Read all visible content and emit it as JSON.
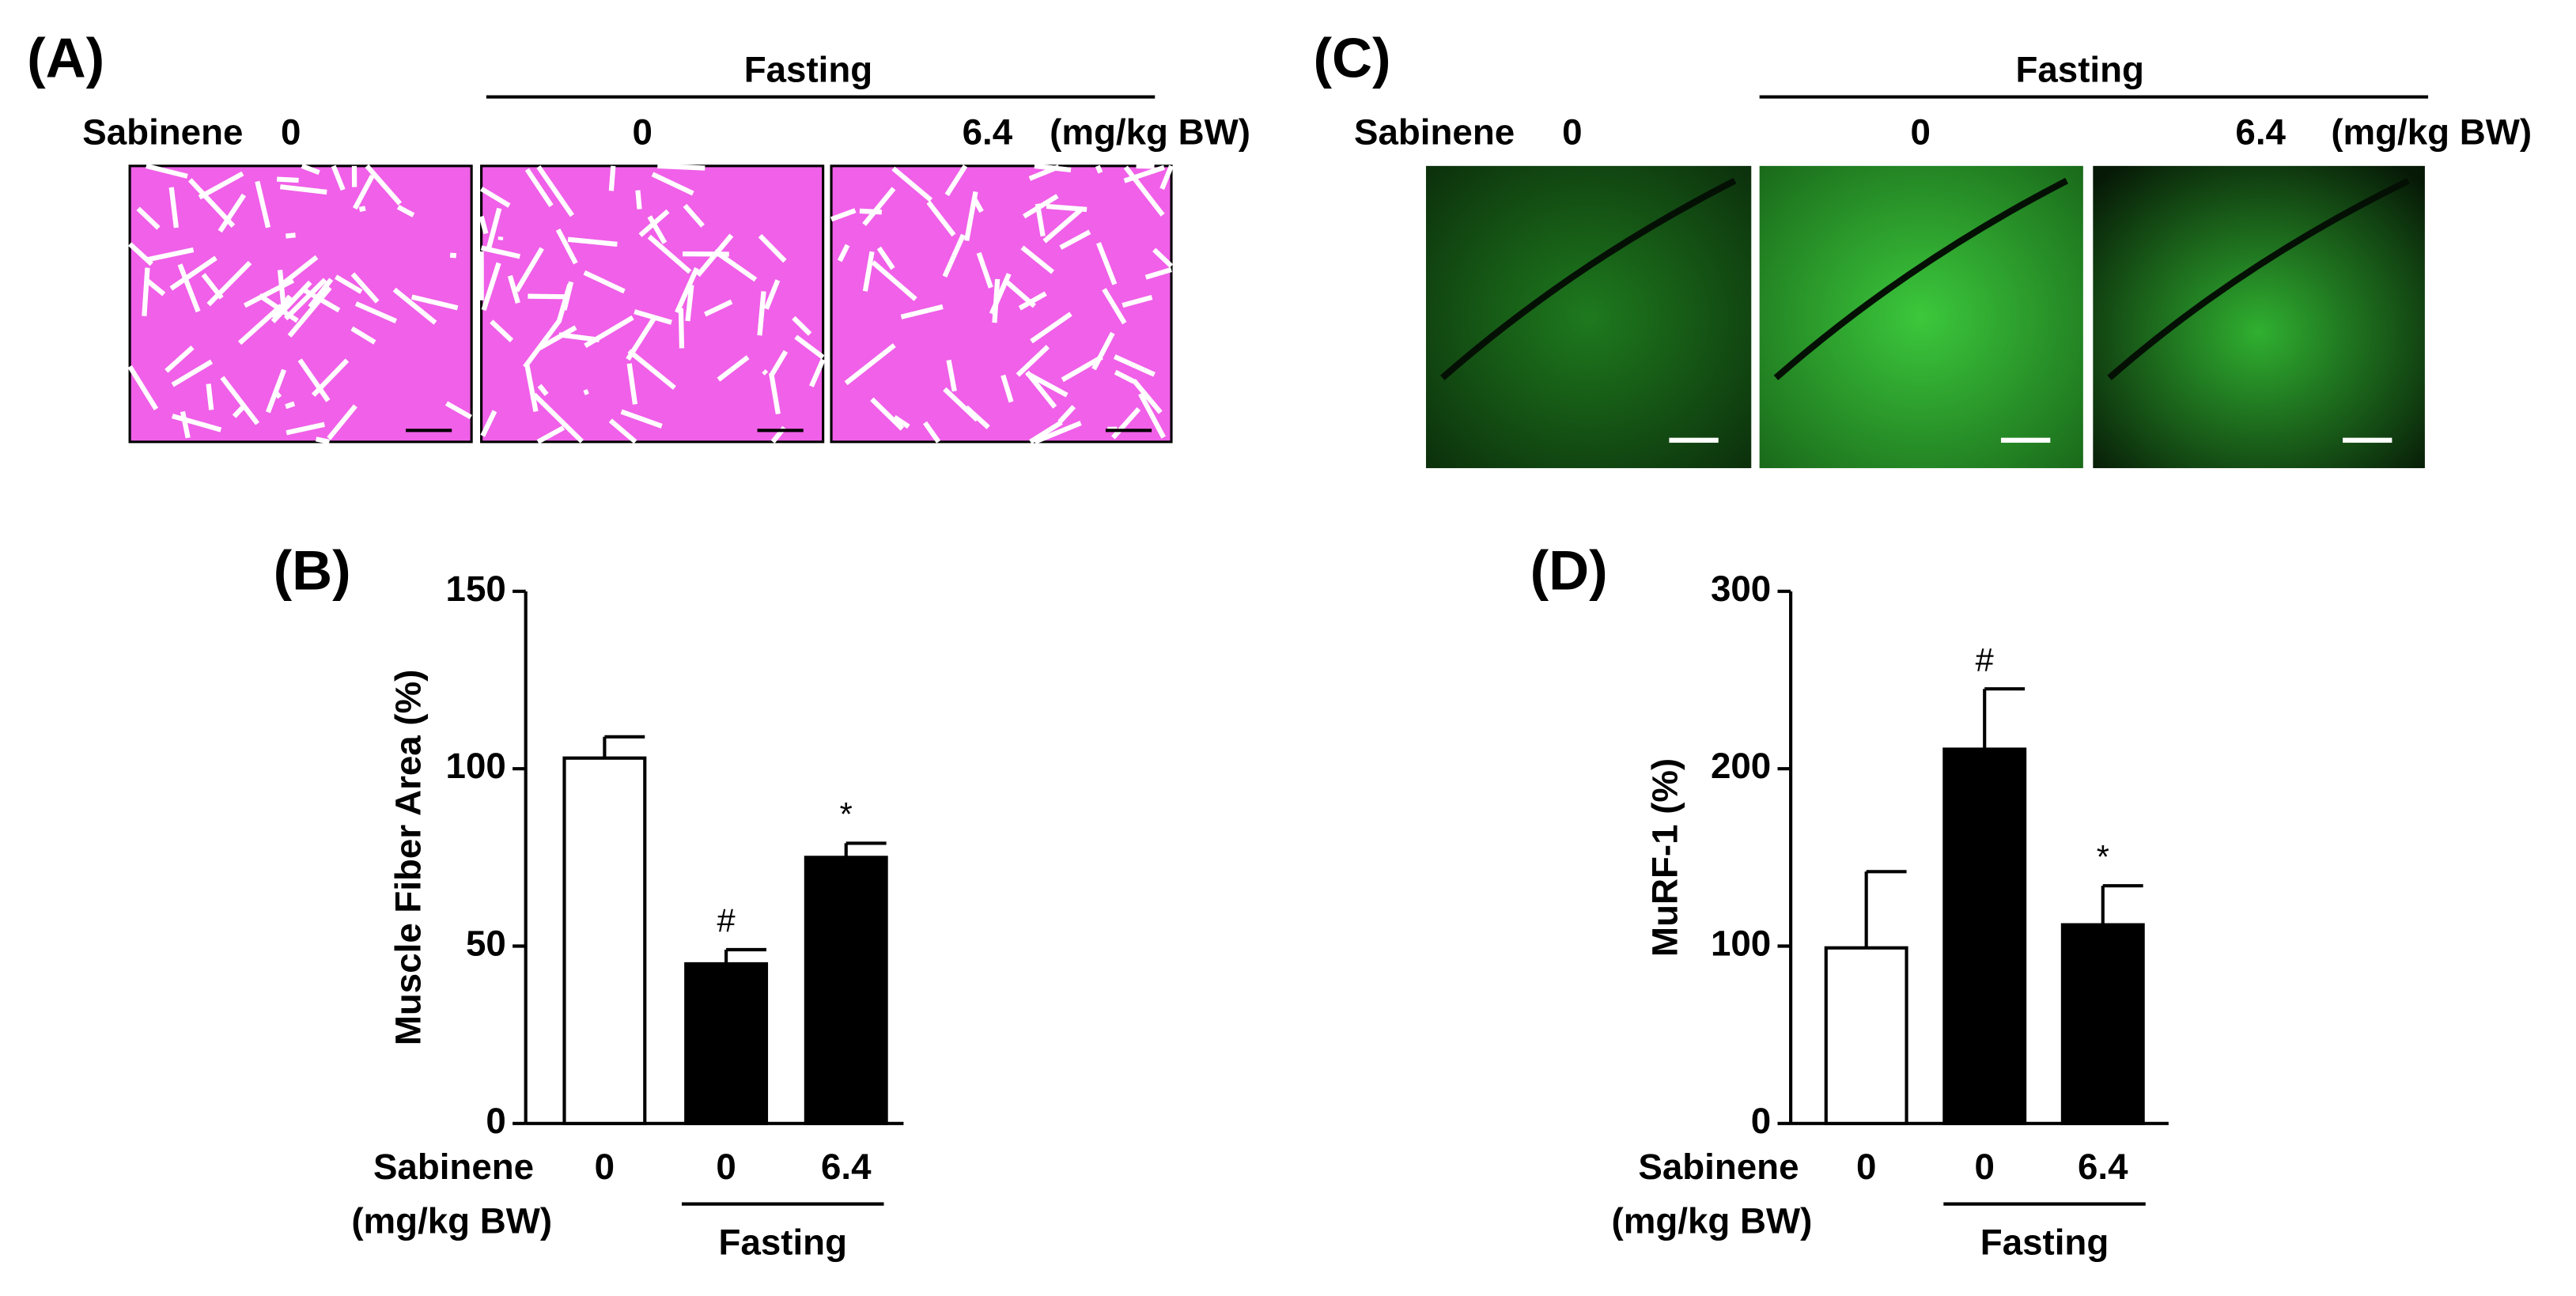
{
  "image_panels": [
    {
      "label": "(A)",
      "group_label": "Fasting",
      "row_label": "Sabinene",
      "doses": [
        "0",
        "0",
        "6.4"
      ],
      "unit": "(mg/kg BW)"
    },
    {
      "label": "(C)",
      "group_label": "Fasting",
      "row_label": "Sabinene",
      "doses": [
        "0",
        "0",
        "6.4"
      ],
      "unit": "(mg/kg BW)"
    }
  ],
  "chart_data": [
    {
      "type": "bar",
      "label": "(B)",
      "y_label": "Muscle Fiber Area (%)",
      "row_label": "Sabinene",
      "unit_label": "(mg/kg BW)",
      "group_label": "Fasting",
      "categories": [
        "0",
        "0",
        "6.4"
      ],
      "values": [
        103,
        45,
        75
      ],
      "errors": [
        6,
        4,
        4
      ],
      "markers": [
        null,
        "#",
        "*"
      ],
      "colors": [
        "#ffffff",
        "#000000",
        "#000000"
      ],
      "ylim": [
        0,
        150
      ],
      "yticks": [
        0,
        50,
        100,
        150
      ]
    },
    {
      "type": "bar",
      "label": "(D)",
      "y_label": "MuRF-1 (%)",
      "row_label": "Sabinene",
      "unit_label": "(mg/kg BW)",
      "group_label": "Fasting",
      "categories": [
        "0",
        "0",
        "6.4"
      ],
      "values": [
        99,
        211,
        112
      ],
      "errors": [
        43,
        34,
        22
      ],
      "markers": [
        null,
        "#",
        "*"
      ],
      "colors": [
        "#ffffff",
        "#000000",
        "#000000"
      ],
      "ylim": [
        0,
        300
      ],
      "yticks": [
        0,
        100,
        200,
        300
      ]
    }
  ]
}
